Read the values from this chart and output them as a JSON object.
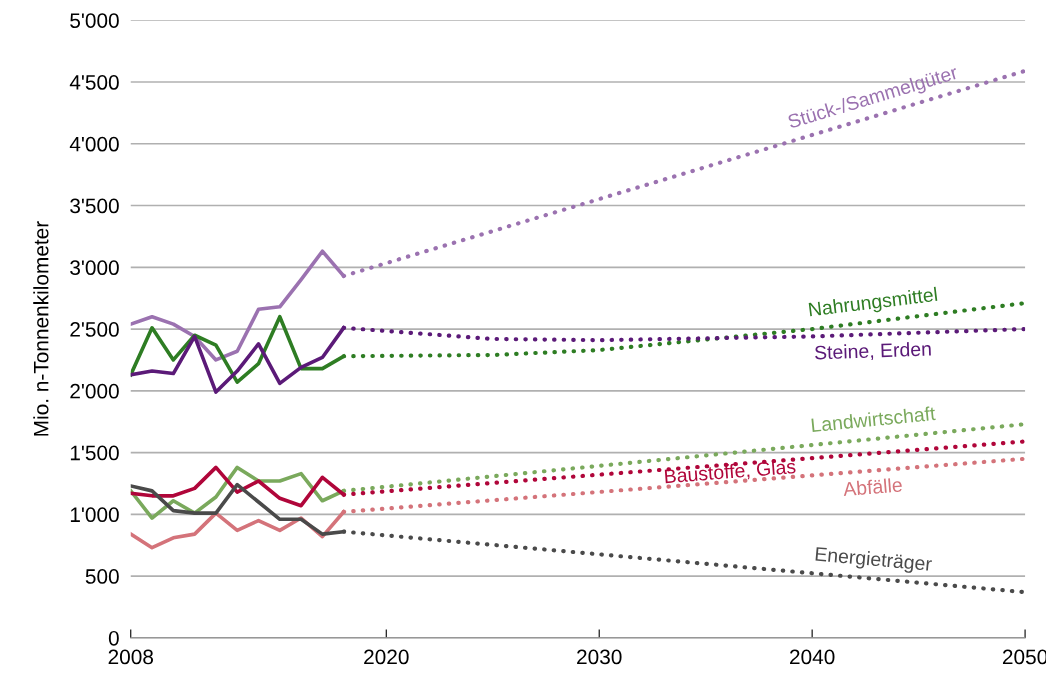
{
  "chart_data": {
    "type": "line",
    "ylabel": "Mio. n-Tonnenkilometer",
    "xlim": [
      2008,
      2050
    ],
    "xticks": [
      2008,
      2020,
      2030,
      2040,
      2050
    ],
    "ylim": [
      0,
      5000
    ],
    "yticks": [
      0,
      500,
      {
        "value": 1000,
        "label": "1'000"
      },
      {
        "value": 1500,
        "label": "1'500"
      },
      {
        "value": 2000,
        "label": "2'000"
      },
      {
        "value": 2500,
        "label": "2'500"
      },
      {
        "value": 3000,
        "label": "3'000"
      },
      {
        "value": 3500,
        "label": "3'500"
      },
      {
        "value": 4000,
        "label": "4'000"
      },
      {
        "value": 4500,
        "label": "4'500"
      },
      {
        "value": 5000,
        "label": "5'000"
      }
    ],
    "grid": "y",
    "legend": false,
    "marker": "none",
    "series": [
      {
        "color": "#9b72b0",
        "line_style": "solid",
        "x": [
          2008,
          2009,
          2010,
          2011,
          2012,
          2013,
          2014,
          2015,
          2016,
          2017,
          2018
        ],
        "values": [
          2540,
          2600,
          2540,
          2440,
          2250,
          2320,
          2660,
          2680,
          2900,
          3130,
          2930
        ]
      },
      {
        "name": "Stück-/Sammelgüter",
        "color": "#9b72b0",
        "line_style": "dotted",
        "x": [
          2018,
          2050
        ],
        "values": [
          2930,
          4590
        ]
      },
      {
        "color": "#2e7d23",
        "line_style": "solid",
        "x": [
          2008,
          2009,
          2010,
          2011,
          2012,
          2013,
          2014,
          2015,
          2016,
          2017,
          2018
        ],
        "values": [
          2130,
          2510,
          2250,
          2450,
          2370,
          2070,
          2220,
          2600,
          2180,
          2180,
          2280
        ]
      },
      {
        "name": "Nahrungsmittel",
        "color": "#2e7d23",
        "line_style": "dotted",
        "x": [
          2018,
          2025,
          2030,
          2040,
          2050
        ],
        "values": [
          2280,
          2290,
          2330,
          2500,
          2710
        ]
      },
      {
        "color": "#5b1a78",
        "line_style": "solid",
        "x": [
          2008,
          2009,
          2010,
          2011,
          2012,
          2013,
          2014,
          2015,
          2016,
          2017,
          2018
        ],
        "values": [
          2130,
          2160,
          2140,
          2440,
          1990,
          2160,
          2380,
          2060,
          2190,
          2270,
          2510
        ]
      },
      {
        "name": "Steine, Erden",
        "color": "#5b1a78",
        "line_style": "dotted",
        "x": [
          2018,
          2025,
          2030,
          2040,
          2050
        ],
        "values": [
          2510,
          2420,
          2410,
          2440,
          2500
        ]
      },
      {
        "color": "#7aa95c",
        "line_style": "solid",
        "x": [
          2008,
          2009,
          2010,
          2011,
          2012,
          2013,
          2014,
          2015,
          2016,
          2017,
          2018
        ],
        "values": [
          1190,
          970,
          1110,
          1010,
          1140,
          1380,
          1270,
          1270,
          1330,
          1110,
          1190
        ]
      },
      {
        "name": "Landwirtschaft",
        "color": "#7aa95c",
        "line_style": "dotted",
        "x": [
          2018,
          2050
        ],
        "values": [
          1190,
          1730
        ]
      },
      {
        "color": "#b0063a",
        "line_style": "solid",
        "x": [
          2008,
          2009,
          2010,
          2011,
          2012,
          2013,
          2014,
          2015,
          2016,
          2017,
          2018
        ],
        "values": [
          1170,
          1150,
          1150,
          1210,
          1380,
          1180,
          1270,
          1130,
          1070,
          1300,
          1160
        ]
      },
      {
        "name": "Baustoffe, Glas",
        "color": "#b0063a",
        "line_style": "dotted",
        "x": [
          2018,
          2050
        ],
        "values": [
          1160,
          1590
        ]
      },
      {
        "color": "#d4737a",
        "line_style": "solid",
        "x": [
          2008,
          2009,
          2010,
          2011,
          2012,
          2013,
          2014,
          2015,
          2016,
          2017,
          2018
        ],
        "values": [
          840,
          730,
          810,
          840,
          1010,
          870,
          950,
          870,
          970,
          820,
          1020
        ]
      },
      {
        "name": "Abfälle",
        "color": "#d4737a",
        "line_style": "dotted",
        "x": [
          2018,
          2050
        ],
        "values": [
          1020,
          1450
        ]
      },
      {
        "color": "#4a4a4a",
        "line_style": "solid",
        "x": [
          2008,
          2009,
          2010,
          2011,
          2012,
          2013,
          2014,
          2015,
          2016,
          2017,
          2018
        ],
        "values": [
          1230,
          1190,
          1030,
          1010,
          1010,
          1240,
          1100,
          960,
          960,
          840,
          860
        ]
      },
      {
        "name": "Energieträger",
        "color": "#4a4a4a",
        "line_style": "dotted",
        "x": [
          2018,
          2050
        ],
        "values": [
          860,
          370
        ]
      }
    ]
  }
}
